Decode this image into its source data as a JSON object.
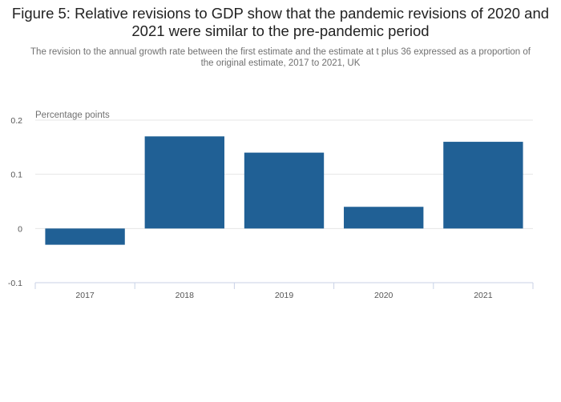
{
  "chart_data": {
    "type": "bar",
    "title": "Figure 5: Relative revisions to GDP show that the pandemic revisions of 2020 and 2021 were similar to the pre-pandemic period",
    "subtitle": "The revision to the annual growth rate between the first estimate and the estimate at t plus 36 expressed as a proportion of the original estimate, 2017 to 2021, UK",
    "ylabel": "Percentage points",
    "xlabel": "",
    "categories": [
      "2017",
      "2018",
      "2019",
      "2020",
      "2021"
    ],
    "values": [
      -0.03,
      0.17,
      0.14,
      0.04,
      0.16
    ],
    "ylim": [
      -0.1,
      0.2
    ],
    "yticks": [
      -0.1,
      0,
      0.1,
      0.2
    ],
    "ytick_labels": [
      "-0.1",
      "0",
      "0.1",
      "0.2"
    ],
    "grid": true,
    "bar_color": "#206095"
  }
}
